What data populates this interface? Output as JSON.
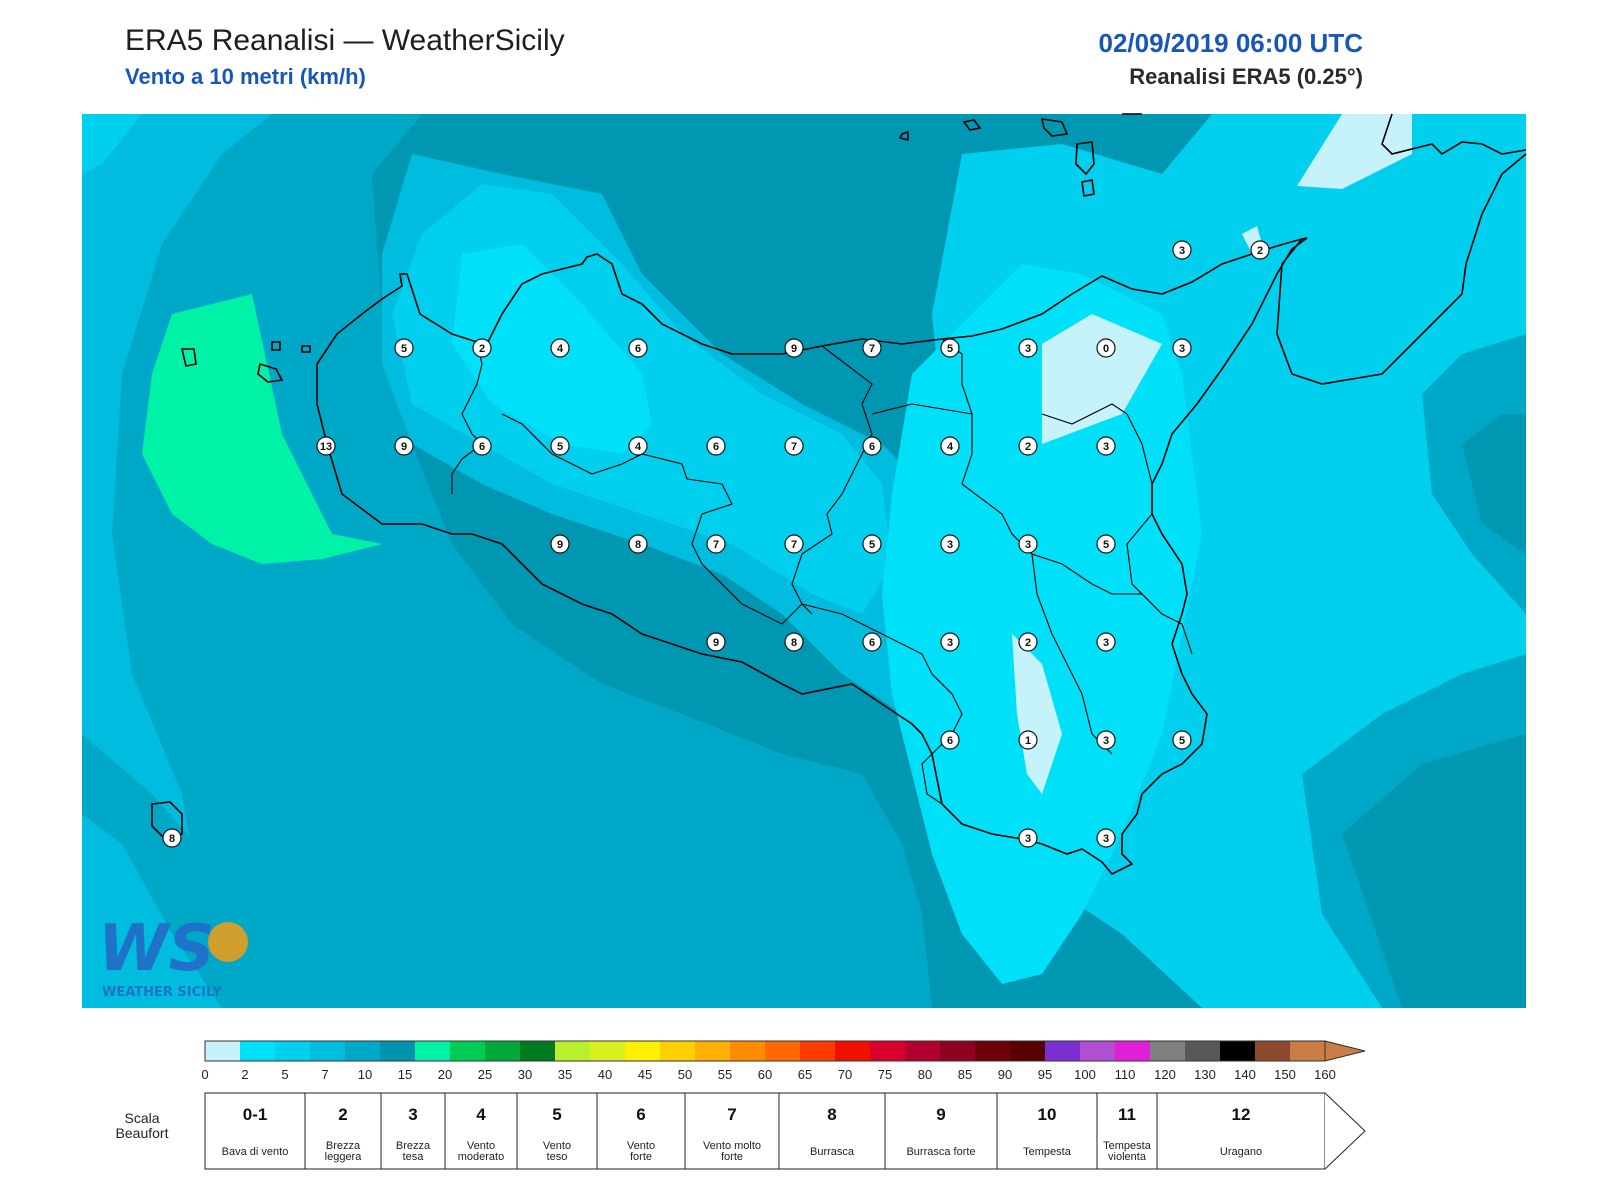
{
  "header": {
    "title": "ERA5 Reanalisi — WeatherSicily",
    "subtitle": "Vento a 10 metri (km/h)",
    "datetime": "02/09/2019 06:00 UTC",
    "source": "Reanalisi ERA5 (0.25°)"
  },
  "logo": {
    "text": "WEATHER SICILY",
    "letters": "WS"
  },
  "colors": {
    "accent": "#1757b8",
    "background_sea": "#0097b2",
    "land_light": "#00d8f4",
    "calm": "#c6f2fb",
    "strong": "#00f2a6"
  },
  "wind_values": [
    {
      "v": "3"
    },
    {
      "v": "2"
    },
    {
      "v": "5"
    },
    {
      "v": "2"
    },
    {
      "v": "4"
    },
    {
      "v": "6"
    },
    {
      "v": "9"
    },
    {
      "v": "7"
    },
    {
      "v": "5"
    },
    {
      "v": "3"
    },
    {
      "v": "0"
    },
    {
      "v": "3"
    },
    {
      "v": "13"
    },
    {
      "v": "9"
    },
    {
      "v": "6"
    },
    {
      "v": "5"
    },
    {
      "v": "4"
    },
    {
      "v": "6"
    },
    {
      "v": "7"
    },
    {
      "v": "6"
    },
    {
      "v": "4"
    },
    {
      "v": "2"
    },
    {
      "v": "3"
    },
    {
      "v": "9"
    },
    {
      "v": "8"
    },
    {
      "v": "7"
    },
    {
      "v": "7"
    },
    {
      "v": "5"
    },
    {
      "v": "3"
    },
    {
      "v": "3"
    },
    {
      "v": "5"
    },
    {
      "v": "9"
    },
    {
      "v": "8"
    },
    {
      "v": "6"
    },
    {
      "v": "3"
    },
    {
      "v": "2"
    },
    {
      "v": "3"
    },
    {
      "v": "6"
    },
    {
      "v": "1"
    },
    {
      "v": "3"
    },
    {
      "v": "5"
    },
    {
      "v": "8"
    },
    {
      "v": "3"
    },
    {
      "v": "3"
    }
  ],
  "colorbar": {
    "ticks": [
      "0",
      "2",
      "5",
      "7",
      "10",
      "15",
      "20",
      "25",
      "30",
      "35",
      "40",
      "45",
      "50",
      "55",
      "60",
      "65",
      "70",
      "75",
      "80",
      "85",
      "90",
      "95",
      "100",
      "110",
      "120",
      "130",
      "140",
      "150",
      "160"
    ],
    "colors": [
      "#c6f2fb",
      "#00e0f8",
      "#00cfee",
      "#00bde0",
      "#00a8c8",
      "#0093ac",
      "#00f2a6",
      "#00cc55",
      "#00a83a",
      "#007a1e",
      "#b8f030",
      "#d8f020",
      "#fff000",
      "#ffd000",
      "#ffb000",
      "#ff8c00",
      "#ff6a00",
      "#ff3c00",
      "#f01000",
      "#d8002a",
      "#b00030",
      "#900020",
      "#700008",
      "#560000",
      "#7b2fd0",
      "#b050d0",
      "#e020d8",
      "#808080",
      "#585858",
      "#000000",
      "#8b4a2b",
      "#c87d45"
    ]
  },
  "beaufort": {
    "label": "Scala Beaufort",
    "classes": [
      {
        "num": "0-1",
        "desc": "Bava di vento"
      },
      {
        "num": "2",
        "desc": "Brezza leggera"
      },
      {
        "num": "3",
        "desc": "Brezza tesa"
      },
      {
        "num": "4",
        "desc": "Vento moderato"
      },
      {
        "num": "5",
        "desc": "Vento teso"
      },
      {
        "num": "6",
        "desc": "Vento forte"
      },
      {
        "num": "7",
        "desc": "Vento molto forte"
      },
      {
        "num": "8",
        "desc": "Burrasca"
      },
      {
        "num": "9",
        "desc": "Burrasca forte"
      },
      {
        "num": "10",
        "desc": "Tempesta"
      },
      {
        "num": "11",
        "desc": "Tempesta violenta"
      },
      {
        "num": "12",
        "desc": "Uragano"
      }
    ]
  }
}
